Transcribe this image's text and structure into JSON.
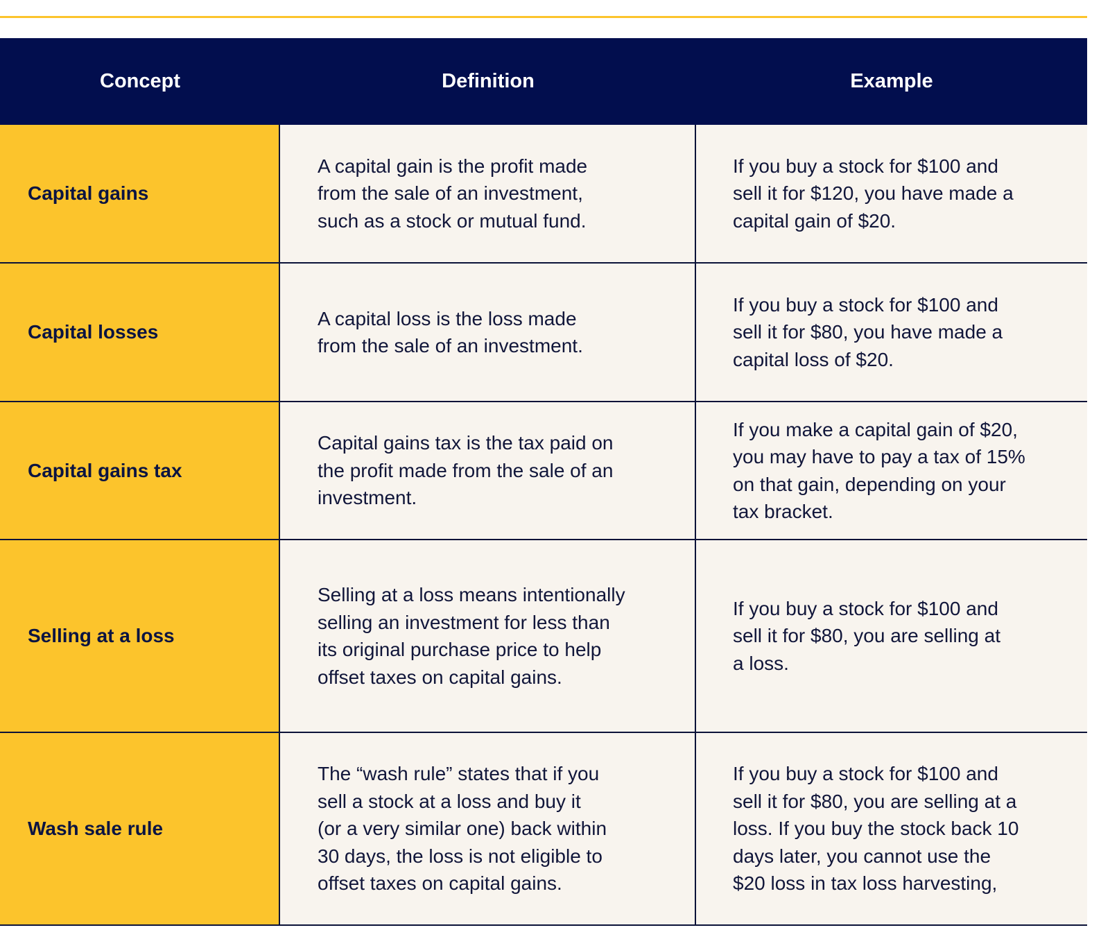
{
  "header": {
    "columns": [
      "Concept",
      "Definition",
      "Example"
    ]
  },
  "table": {
    "rows": [
      {
        "concept": "Capital gains",
        "definition": [
          "A capital gain is the profit made",
          "from the sale of an investment,",
          "such as a stock or mutual fund."
        ],
        "example": [
          "If you buy a stock for $100 and",
          "sell it for $120, you have made a",
          "capital gain of $20."
        ]
      },
      {
        "concept": "Capital losses",
        "definition": [
          "A capital loss is the loss made",
          "from the sale of an investment."
        ],
        "example": [
          "If you buy a stock for $100 and",
          "sell it for $80, you have made a",
          "capital loss of $20."
        ]
      },
      {
        "concept": "Capital gains tax",
        "definition": [
          "Capital gains tax is the tax paid on",
          "the profit made from the sale of an",
          "investment."
        ],
        "example": [
          "If you make a capital gain of $20,",
          "you may have to pay a tax of 15%",
          "on that gain, depending on your",
          "tax bracket."
        ]
      },
      {
        "concept": "Selling at a loss",
        "definition": [
          "Selling at a loss means intentionally",
          "selling an investment for less than",
          "its original purchase price to help",
          "offset taxes on capital gains."
        ],
        "example": [
          "If you buy a stock for $100 and",
          "sell it for $80, you are selling at",
          "a loss."
        ]
      },
      {
        "concept": "Wash sale rule",
        "definition": [
          "The “wash rule” states that if you",
          "sell a stock at a loss and buy it",
          "(or a very similar one) back within",
          "30 days, the loss is not eligible to",
          "offset taxes on capital gains."
        ],
        "example": [
          "If you buy a stock for $100 and",
          "sell it for $80, you are selling at a",
          "loss. If you buy the stock back 10",
          "days later, you cannot use the",
          "$20 loss in tax loss harvesting,"
        ]
      }
    ]
  }
}
